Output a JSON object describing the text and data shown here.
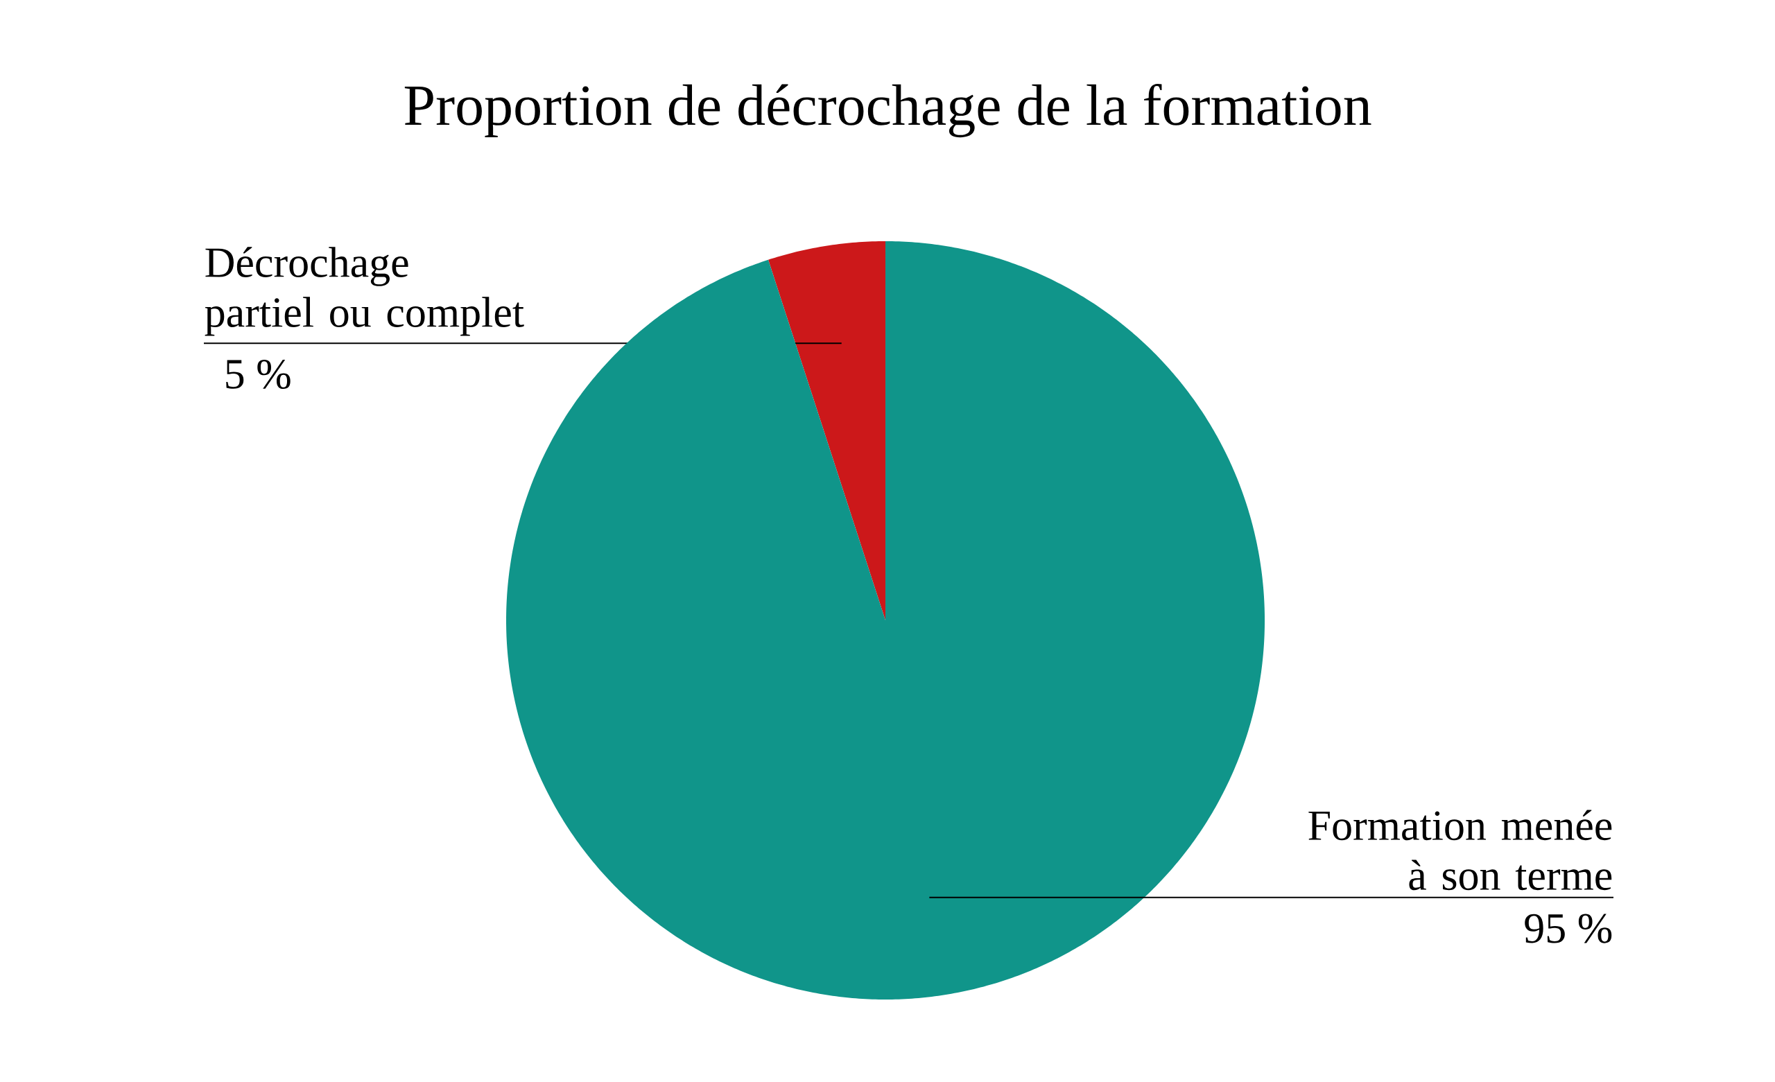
{
  "chart_data": {
    "type": "pie",
    "title": "Proportion de décrochage de la formation",
    "categories": [
      "Décrochage partiel ou complet",
      "Formation menée à son terme"
    ],
    "values": [
      5,
      95
    ],
    "colors": [
      "#cc181a",
      "#10958a"
    ],
    "value_labels": [
      "5 %",
      "95 %"
    ]
  }
}
